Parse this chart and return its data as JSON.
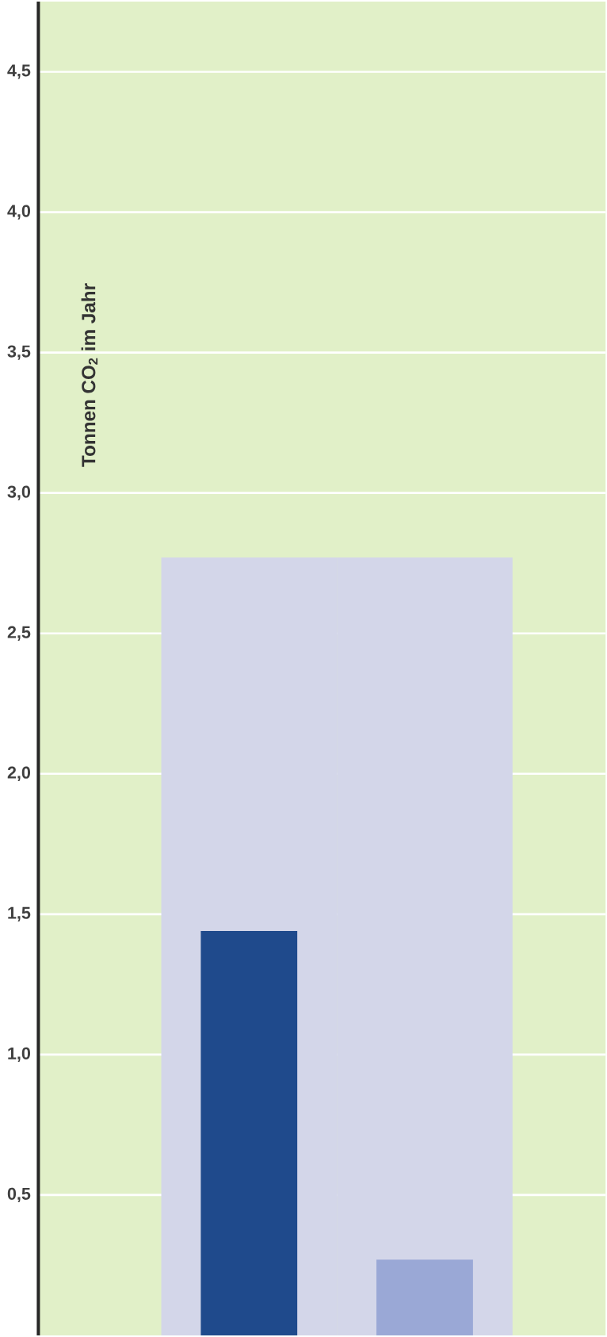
{
  "chart_data": {
    "type": "bar",
    "ylabel": "Tonnen CO$_{2}$ im Jahr",
    "categories": [
      null,
      null
    ],
    "series": [
      {
        "color": "#d3d6e9",
        "values": [
          2.77,
          2.77
        ]
      },
      {
        "colors": [
          "#1f4a8c",
          "#9aa8d6"
        ],
        "values": [
          1.44,
          0.27
        ]
      }
    ],
    "ylim": [
      0,
      4.75
    ],
    "yticks": [
      {
        "value": 0.5,
        "label": "0,5"
      },
      {
        "value": 1.0,
        "label": "1,0"
      },
      {
        "value": 1.5,
        "label": "1,5"
      },
      {
        "value": 2.0,
        "label": "2,0"
      },
      {
        "value": 2.5,
        "label": "2,5"
      },
      {
        "value": 3.0,
        "label": "3,0"
      },
      {
        "value": 3.5,
        "label": "3,5"
      },
      {
        "value": 4.0,
        "label": "4,0"
      },
      {
        "value": 4.5,
        "label": "4,5"
      }
    ],
    "grid": "y"
  }
}
